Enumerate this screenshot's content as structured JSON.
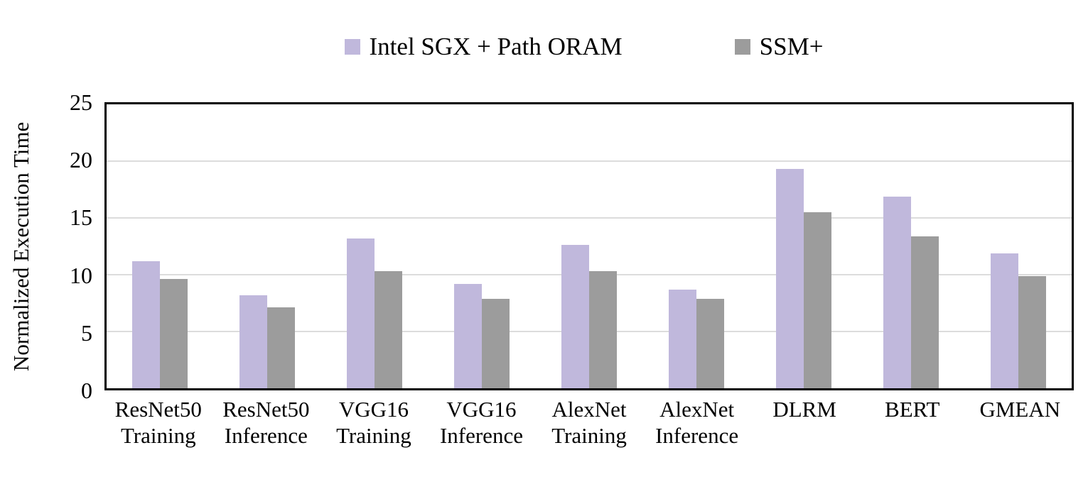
{
  "figure": {
    "background": "#FFFFFF",
    "plot_border_color": "#000000",
    "gridline_color": "#DCDCDC"
  },
  "chart_data": {
    "type": "bar",
    "title": "",
    "xlabel": "",
    "ylabel": "Normalized Execution Time",
    "ylim": [
      0,
      25
    ],
    "yticks": [
      0,
      5,
      10,
      15,
      20,
      25
    ],
    "grid": true,
    "legend_position": "top-center",
    "bar_layout": "grouped-pairs-touching",
    "categories": [
      "ResNet50\nTraining",
      "ResNet50\nInference",
      "VGG16\nTraining",
      "VGG16\nInference",
      "AlexNet\nTraining",
      "AlexNet\nInference",
      "DLRM",
      "BERT",
      "GMEAN"
    ],
    "series": [
      {
        "name": "Intel SGX + Path ORAM",
        "color": "#C0B8DC",
        "values": [
          11.2,
          8.2,
          13.2,
          9.2,
          12.6,
          8.7,
          19.3,
          16.9,
          11.9
        ]
      },
      {
        "name": "SSM+",
        "color": "#9C9C9C",
        "values": [
          9.6,
          7.1,
          10.3,
          7.9,
          10.3,
          7.9,
          15.5,
          13.4,
          9.9
        ]
      }
    ]
  }
}
